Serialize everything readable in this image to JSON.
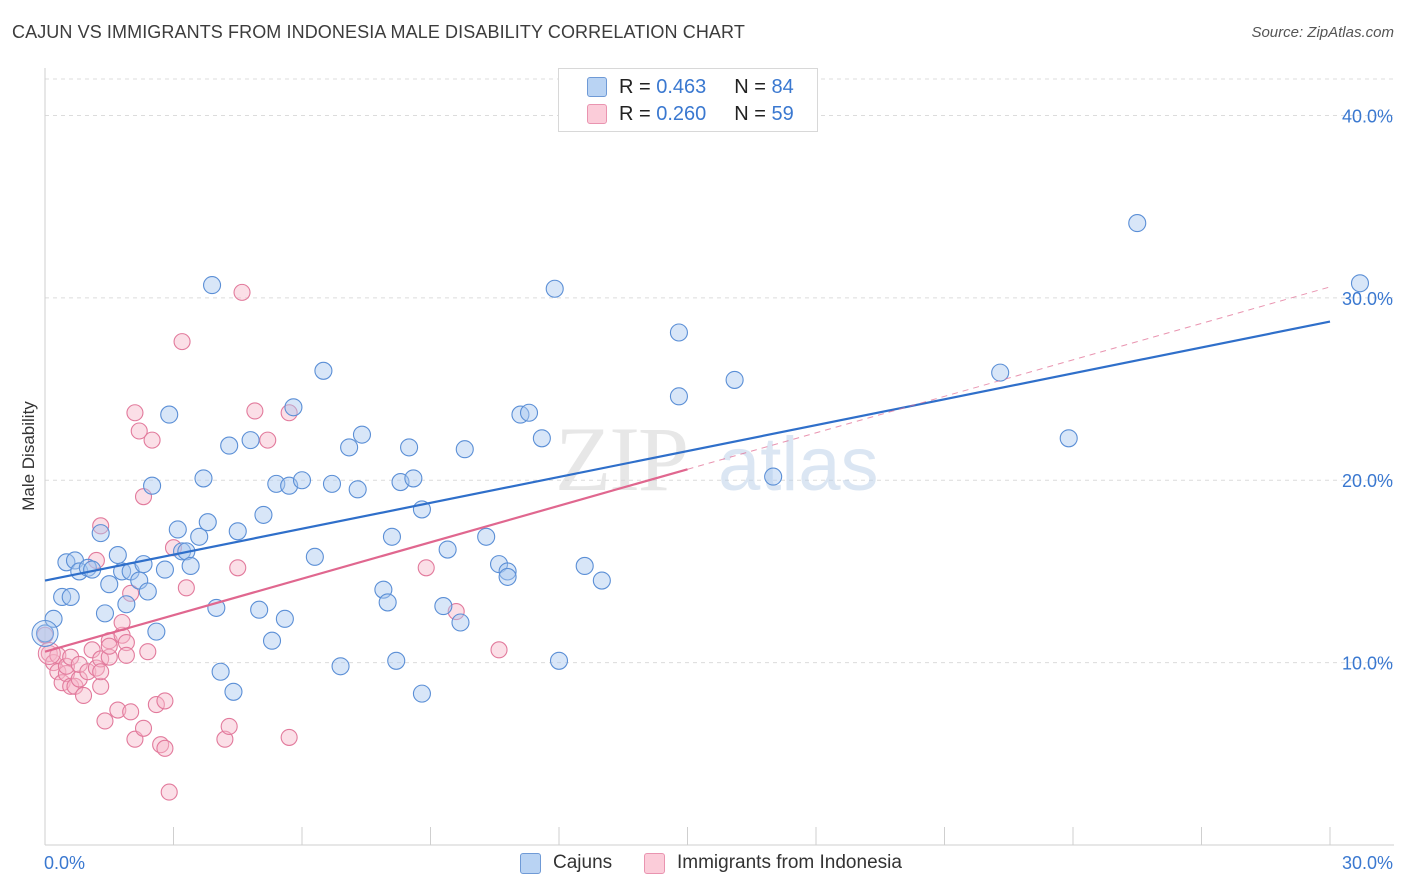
{
  "header": {
    "title": "CAJUN VS IMMIGRANTS FROM INDONESIA MALE DISABILITY CORRELATION CHART",
    "source": "Source: ZipAtlas.com"
  },
  "legend": {
    "rows": [
      {
        "r_label": "R = ",
        "r_value": "0.463",
        "n_label": "N = ",
        "n_value": "84"
      },
      {
        "r_label": "R = ",
        "r_value": "0.260",
        "n_label": "N = ",
        "n_value": "59"
      }
    ]
  },
  "watermark": {
    "zip": "ZIP",
    "atlas": "atlas"
  },
  "colors": {
    "blue_fill": "#a9c8f0",
    "blue_stroke": "#5b8fd6",
    "blue_line": "#2f6fca",
    "pink_fill": "#f7b8ca",
    "pink_stroke": "#e27a9c",
    "pink_line": "#e0678f",
    "axis_label": "#3a78d0",
    "grid": "#dcdcdc"
  },
  "chart_data": {
    "type": "scatter",
    "title": "CAJUN VS IMMIGRANTS FROM INDONESIA MALE DISABILITY CORRELATION CHART",
    "xlabel": "",
    "ylabel": "Male Disability",
    "xlim": [
      0,
      30
    ],
    "ylim": [
      0,
      42
    ],
    "x_ticks": [
      0,
      30
    ],
    "x_tick_labels": [
      "0.0%",
      "30.0%"
    ],
    "y_ticks": [
      10,
      20,
      30,
      40
    ],
    "y_tick_labels": [
      "10.0%",
      "20.0%",
      "30.0%",
      "40.0%"
    ],
    "grid": true,
    "legend_position": "bottom",
    "series": [
      {
        "name": "Cajuns",
        "color": "#a9c8f0",
        "points": [
          [
            0.0,
            11.6
          ],
          [
            0.2,
            12.4
          ],
          [
            0.4,
            13.6
          ],
          [
            0.5,
            15.5
          ],
          [
            0.6,
            13.6
          ],
          [
            0.7,
            15.6
          ],
          [
            0.8,
            15.0
          ],
          [
            1.0,
            15.2
          ],
          [
            1.1,
            15.1
          ],
          [
            1.3,
            17.1
          ],
          [
            1.4,
            12.7
          ],
          [
            1.5,
            14.3
          ],
          [
            1.7,
            15.9
          ],
          [
            1.8,
            15.0
          ],
          [
            1.9,
            13.2
          ],
          [
            2.0,
            15.0
          ],
          [
            2.2,
            14.5
          ],
          [
            2.3,
            15.4
          ],
          [
            2.4,
            13.9
          ],
          [
            2.5,
            19.7
          ],
          [
            2.6,
            11.7
          ],
          [
            2.8,
            15.1
          ],
          [
            2.9,
            23.6
          ],
          [
            3.1,
            17.3
          ],
          [
            3.2,
            16.1
          ],
          [
            3.3,
            16.1
          ],
          [
            3.4,
            15.3
          ],
          [
            3.6,
            16.9
          ],
          [
            3.7,
            20.1
          ],
          [
            3.8,
            17.7
          ],
          [
            3.9,
            30.7
          ],
          [
            4.0,
            13.0
          ],
          [
            4.1,
            9.5
          ],
          [
            4.3,
            21.9
          ],
          [
            4.4,
            8.4
          ],
          [
            4.5,
            17.2
          ],
          [
            4.8,
            22.2
          ],
          [
            5.0,
            12.9
          ],
          [
            5.1,
            18.1
          ],
          [
            5.3,
            11.2
          ],
          [
            5.4,
            19.8
          ],
          [
            5.6,
            12.4
          ],
          [
            5.7,
            19.7
          ],
          [
            5.8,
            24.0
          ],
          [
            6.0,
            20.0
          ],
          [
            6.3,
            15.8
          ],
          [
            6.5,
            26.0
          ],
          [
            6.7,
            19.8
          ],
          [
            6.9,
            9.8
          ],
          [
            7.1,
            21.8
          ],
          [
            7.3,
            19.5
          ],
          [
            7.4,
            22.5
          ],
          [
            7.9,
            14.0
          ],
          [
            8.0,
            13.3
          ],
          [
            8.1,
            16.9
          ],
          [
            8.2,
            10.1
          ],
          [
            8.3,
            19.9
          ],
          [
            8.5,
            21.8
          ],
          [
            8.6,
            20.1
          ],
          [
            8.8,
            18.4
          ],
          [
            8.8,
            8.3
          ],
          [
            9.3,
            13.1
          ],
          [
            9.4,
            16.2
          ],
          [
            9.7,
            12.2
          ],
          [
            9.8,
            21.7
          ],
          [
            10.3,
            16.9
          ],
          [
            10.6,
            15.4
          ],
          [
            10.8,
            15.0
          ],
          [
            10.8,
            14.7
          ],
          [
            11.1,
            23.6
          ],
          [
            11.3,
            23.7
          ],
          [
            11.6,
            22.3
          ],
          [
            11.9,
            30.5
          ],
          [
            12.0,
            10.1
          ],
          [
            12.6,
            15.3
          ],
          [
            13.0,
            14.5
          ],
          [
            14.8,
            28.1
          ],
          [
            14.8,
            24.6
          ],
          [
            16.1,
            25.5
          ],
          [
            17.0,
            20.2
          ],
          [
            22.3,
            25.9
          ],
          [
            23.9,
            22.3
          ],
          [
            25.5,
            34.1
          ],
          [
            30.7,
            30.8
          ]
        ]
      },
      {
        "name": "Immigrants from Indonesia",
        "color": "#f7b8ca",
        "points": [
          [
            0.0,
            11.5
          ],
          [
            0.1,
            10.5
          ],
          [
            0.2,
            10.0
          ],
          [
            0.3,
            10.4
          ],
          [
            0.3,
            9.5
          ],
          [
            0.4,
            8.9
          ],
          [
            0.5,
            9.4
          ],
          [
            0.5,
            9.8
          ],
          [
            0.6,
            10.3
          ],
          [
            0.6,
            8.7
          ],
          [
            0.7,
            8.7
          ],
          [
            0.8,
            9.1
          ],
          [
            0.8,
            9.9
          ],
          [
            0.9,
            8.2
          ],
          [
            1.0,
            9.5
          ],
          [
            1.1,
            10.7
          ],
          [
            1.2,
            15.6
          ],
          [
            1.2,
            9.7
          ],
          [
            1.3,
            10.2
          ],
          [
            1.3,
            8.7
          ],
          [
            1.3,
            9.5
          ],
          [
            1.3,
            17.5
          ],
          [
            1.4,
            6.8
          ],
          [
            1.5,
            10.3
          ],
          [
            1.5,
            11.2
          ],
          [
            1.5,
            10.9
          ],
          [
            1.7,
            7.4
          ],
          [
            1.8,
            11.5
          ],
          [
            1.8,
            12.2
          ],
          [
            1.9,
            11.1
          ],
          [
            1.9,
            10.4
          ],
          [
            2.0,
            13.8
          ],
          [
            2.0,
            7.3
          ],
          [
            2.1,
            5.8
          ],
          [
            2.1,
            23.7
          ],
          [
            2.2,
            22.7
          ],
          [
            2.3,
            6.4
          ],
          [
            2.3,
            19.1
          ],
          [
            2.4,
            10.6
          ],
          [
            2.5,
            22.2
          ],
          [
            2.6,
            7.7
          ],
          [
            2.7,
            5.5
          ],
          [
            2.8,
            5.3
          ],
          [
            2.8,
            7.9
          ],
          [
            2.9,
            2.9
          ],
          [
            3.0,
            16.3
          ],
          [
            3.2,
            27.6
          ],
          [
            3.3,
            14.1
          ],
          [
            4.2,
            5.8
          ],
          [
            4.3,
            6.5
          ],
          [
            4.5,
            15.2
          ],
          [
            4.6,
            30.3
          ],
          [
            4.9,
            23.8
          ],
          [
            5.2,
            22.2
          ],
          [
            5.7,
            23.7
          ],
          [
            5.7,
            5.9
          ],
          [
            8.9,
            15.2
          ],
          [
            9.6,
            12.8
          ],
          [
            10.6,
            10.7
          ]
        ]
      }
    ],
    "trend_lines": [
      {
        "series": "Cajuns",
        "x": [
          0,
          30
        ],
        "y": [
          14.5,
          28.7
        ]
      },
      {
        "series": "Immigrants from Indonesia",
        "x": [
          0,
          15
        ],
        "y": [
          10.6,
          20.6
        ],
        "dashed_extension_x": [
          15,
          30
        ],
        "dashed_extension_y": [
          20.6,
          30.6
        ]
      }
    ]
  }
}
